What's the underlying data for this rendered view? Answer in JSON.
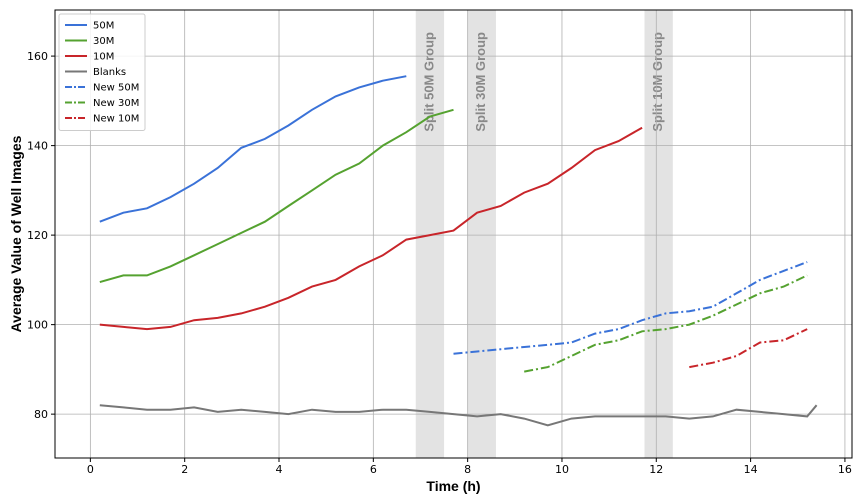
{
  "chart_data": {
    "type": "line",
    "xlabel": "Time (h)",
    "ylabel": "Average Value of Well Images",
    "xlim": [
      -0.75,
      16.15
    ],
    "ylim": [
      70.2,
      170.3
    ],
    "xticks": [
      0,
      2,
      4,
      6,
      8,
      10,
      12,
      14,
      16
    ],
    "yticks": [
      80,
      100,
      120,
      140,
      160
    ],
    "grid": true,
    "legend": "upper left",
    "x": [
      0.2,
      0.7,
      1.2,
      1.7,
      2.2,
      2.7,
      3.2,
      3.7,
      4.2,
      4.7,
      5.2,
      5.7,
      6.2,
      6.7,
      7.2,
      7.7,
      8.2,
      8.7,
      9.2,
      9.7,
      10.2,
      10.7,
      11.2,
      11.7,
      12.2,
      12.7,
      13.2,
      13.7,
      14.2,
      14.7,
      15.2,
      15.4
    ],
    "series": [
      {
        "name": "50M",
        "color": "#3a72d8",
        "linestyle": "solid",
        "values": [
          123,
          125,
          126,
          128.5,
          131.5,
          135,
          139.5,
          141.5,
          144.5,
          148,
          151,
          153,
          154.5,
          155.5,
          null,
          null,
          null,
          null,
          null,
          null,
          null,
          null,
          null,
          null,
          null,
          null,
          null,
          null,
          null,
          null,
          null,
          null
        ]
      },
      {
        "name": "30M",
        "color": "#55a230",
        "linestyle": "solid",
        "values": [
          109.5,
          111,
          111,
          113,
          115.5,
          118,
          120.5,
          123,
          126.5,
          130,
          133.5,
          136,
          140,
          143,
          146.5,
          148,
          null,
          null,
          null,
          null,
          null,
          null,
          null,
          null,
          null,
          null,
          null,
          null,
          null,
          null,
          null,
          null
        ]
      },
      {
        "name": "10M",
        "color": "#c8252a",
        "linestyle": "solid",
        "values": [
          100,
          99.5,
          99,
          99.5,
          101,
          101.5,
          102.5,
          104,
          106,
          108.5,
          110,
          113,
          115.5,
          119,
          120,
          121,
          125,
          126.5,
          129.5,
          131.5,
          135,
          139,
          141,
          144,
          null,
          null,
          null,
          null,
          null,
          null,
          null,
          null
        ]
      },
      {
        "name": "Blanks",
        "color": "#777777",
        "linestyle": "solid",
        "values": [
          82,
          81.5,
          81,
          81,
          81.5,
          80.5,
          81,
          80.5,
          80,
          81,
          80.5,
          80.5,
          81,
          81,
          80.5,
          80,
          79.5,
          80,
          79,
          77.5,
          79,
          79.5,
          79.5,
          79.5,
          79.5,
          79,
          79.5,
          81,
          80.5,
          80,
          79.5,
          82
        ]
      },
      {
        "name": "New 50M",
        "color": "#3a72d8",
        "linestyle": "dashdot",
        "values": [
          null,
          null,
          null,
          null,
          null,
          null,
          null,
          null,
          null,
          null,
          null,
          null,
          null,
          null,
          null,
          93.5,
          94,
          94.5,
          95,
          95.5,
          96,
          98,
          99,
          101,
          102.5,
          103,
          104,
          107,
          110,
          112,
          114,
          null
        ]
      },
      {
        "name": "New 30M",
        "color": "#55a230",
        "linestyle": "dashdot",
        "values": [
          null,
          null,
          null,
          null,
          null,
          null,
          null,
          null,
          null,
          null,
          null,
          null,
          null,
          null,
          null,
          null,
          null,
          null,
          89.5,
          90.5,
          93,
          95.5,
          96.5,
          98.5,
          99,
          100,
          102,
          104.5,
          107,
          108.5,
          111,
          null
        ]
      },
      {
        "name": "New 10M",
        "color": "#c8252a",
        "linestyle": "dashdot",
        "values": [
          null,
          null,
          null,
          null,
          null,
          null,
          null,
          null,
          null,
          null,
          null,
          null,
          null,
          null,
          null,
          null,
          null,
          null,
          null,
          null,
          null,
          null,
          null,
          null,
          null,
          90.5,
          91.5,
          93,
          96,
          96.5,
          99,
          null
        ]
      }
    ],
    "spans": [
      {
        "text": "Split 50M Group",
        "x0": 6.9,
        "x1": 7.5
      },
      {
        "text": "Split 30M Group",
        "x0": 8.0,
        "x1": 8.6
      },
      {
        "text": "Split 10M Group",
        "x0": 11.75,
        "x1": 12.35
      }
    ]
  }
}
